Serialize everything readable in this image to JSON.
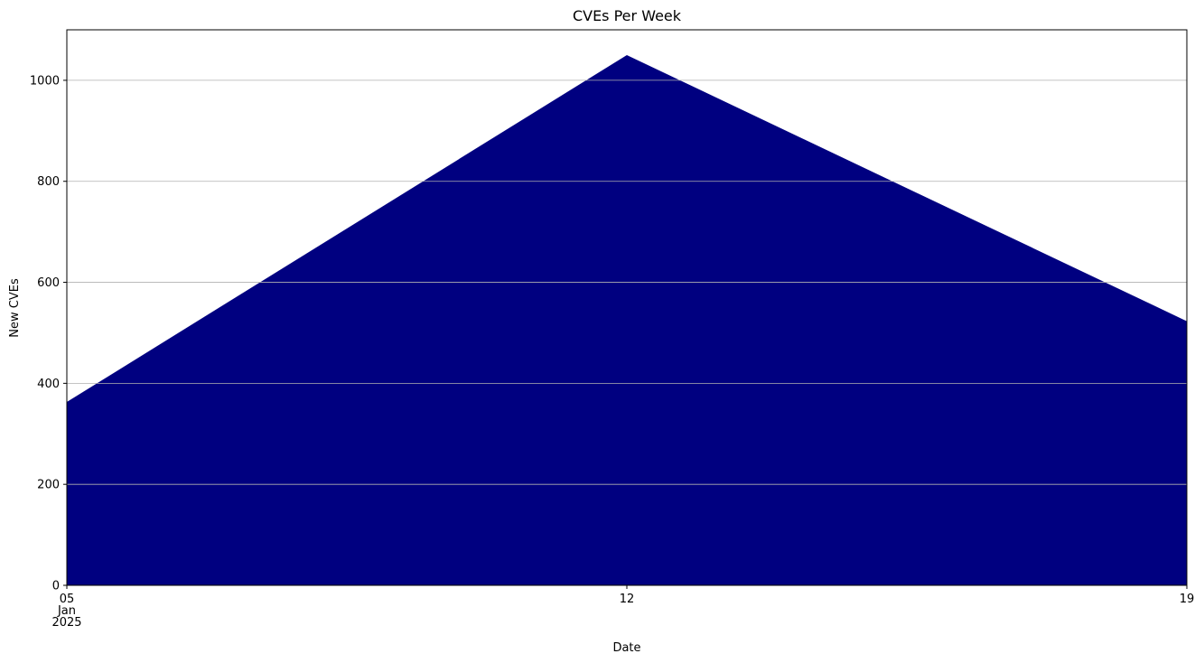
{
  "chart_data": {
    "type": "area",
    "title": "CVEs Per Week",
    "xlabel": "Date",
    "ylabel": "New CVEs",
    "x": [
      "2025-01-05",
      "2025-01-12",
      "2025-01-19"
    ],
    "values": [
      363,
      1050,
      523
    ],
    "x_tick_labels": [
      {
        "day": "05",
        "month": "Jan",
        "year": "2025"
      },
      {
        "day": "12"
      },
      {
        "day": "19"
      }
    ],
    "y_ticks": [
      0,
      200,
      400,
      600,
      800,
      1000
    ],
    "ylim": [
      0,
      1100
    ],
    "grid": "horizontal",
    "legend": "none",
    "fill_color": "#000080",
    "grid_color": "#b0b0b0"
  }
}
